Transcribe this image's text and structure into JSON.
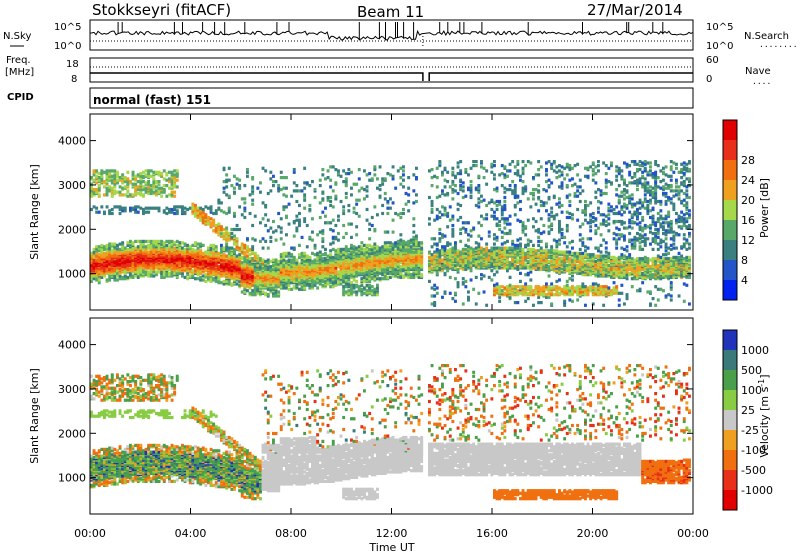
{
  "header": {
    "station": "Stokkseyri (fitACF)",
    "beam": "Beam 11",
    "date": "27/Mar/2014"
  },
  "panel_labels": {
    "nsky": "N.Sky",
    "nsearch": "N.Search",
    "nsearch_dots": "........",
    "freq_line1": "Freq.",
    "freq_line2": "[MHz]",
    "nave": "Nave",
    "nave_dots": "....",
    "cpid": "CPID",
    "cpid_value": "normal (fast) 151"
  },
  "noise_ticks": {
    "left": [
      "10^5",
      "10^0"
    ],
    "right": [
      "10^5",
      "10^0"
    ]
  },
  "freq_ticks": {
    "left": [
      "18",
      "8"
    ],
    "right": [
      "60",
      "0"
    ]
  },
  "chart_data": [
    {
      "type": "heatmap",
      "title": "",
      "ylabel": "Slant Range [km]",
      "ylim": [
        180,
        4600
      ],
      "yticks": [
        1000,
        2000,
        3000,
        4000
      ],
      "colorbar": {
        "label": "Power [dB]",
        "ticks": [
          "4",
          "8",
          "12",
          "16",
          "20",
          "24",
          "28"
        ],
        "levels": [
          "#0022ee",
          "#2255c8",
          "#3a8080",
          "#58a86a",
          "#a6d84c",
          "#f0a020",
          "#f07010",
          "#e83018",
          "#e00000"
        ],
        "range": [
          0,
          30
        ]
      },
      "data_gap": {
        "start": "13:15",
        "end": "13:30"
      },
      "features": [
        {
          "desc": "intense band",
          "range_km": [
            850,
            1400
          ],
          "start": "00:00",
          "end": "13:15",
          "peak_db": 28
        },
        {
          "desc": "weak band",
          "range_km": [
            900,
            1500
          ],
          "start": "13:30",
          "end": "24:00",
          "peak_db": 20
        },
        {
          "desc": "near-range echoes",
          "range_km": [
            480,
            700
          ],
          "start": "16:00",
          "end": "21:00",
          "peak_db": 20
        }
      ]
    },
    {
      "type": "heatmap",
      "title": "",
      "xlabel": "Time UT",
      "ylabel": "Slant Range [km]",
      "ylim": [
        180,
        4600
      ],
      "yticks": [
        1000,
        2000,
        3000,
        4000
      ],
      "xticks": [
        "00:00",
        "04:00",
        "08:00",
        "12:00",
        "16:00",
        "20:00",
        "00:00"
      ],
      "colorbar": {
        "label": "Velocity [m s",
        "label_sup": "-1",
        "label_end": "]",
        "ticks": [
          "1000",
          "500",
          "100",
          "25",
          "-25",
          "-100",
          "-500",
          "-1000"
        ],
        "levels": [
          "#2233bb",
          "#3a7a7a",
          "#4aa04a",
          "#88cc44",
          "#c8c8c8",
          "#f0a020",
          "#f07010",
          "#e83018",
          "#e00000"
        ],
        "range": [
          -1000,
          1000
        ]
      },
      "data_gap": {
        "start": "13:15",
        "end": "13:30"
      },
      "features": [
        {
          "desc": "band velocities",
          "range_km": [
            850,
            1400
          ],
          "start": "00:00",
          "end": "06:30",
          "velocity": 100
        },
        {
          "desc": "low velocity (grey) band",
          "range_km": [
            1000,
            1800
          ],
          "start": "07:00",
          "end": "23:00",
          "velocity": 0
        },
        {
          "desc": "negative velocities",
          "range_km": [
            480,
            700
          ],
          "start": "16:00",
          "end": "21:00",
          "velocity": -200
        }
      ]
    }
  ]
}
